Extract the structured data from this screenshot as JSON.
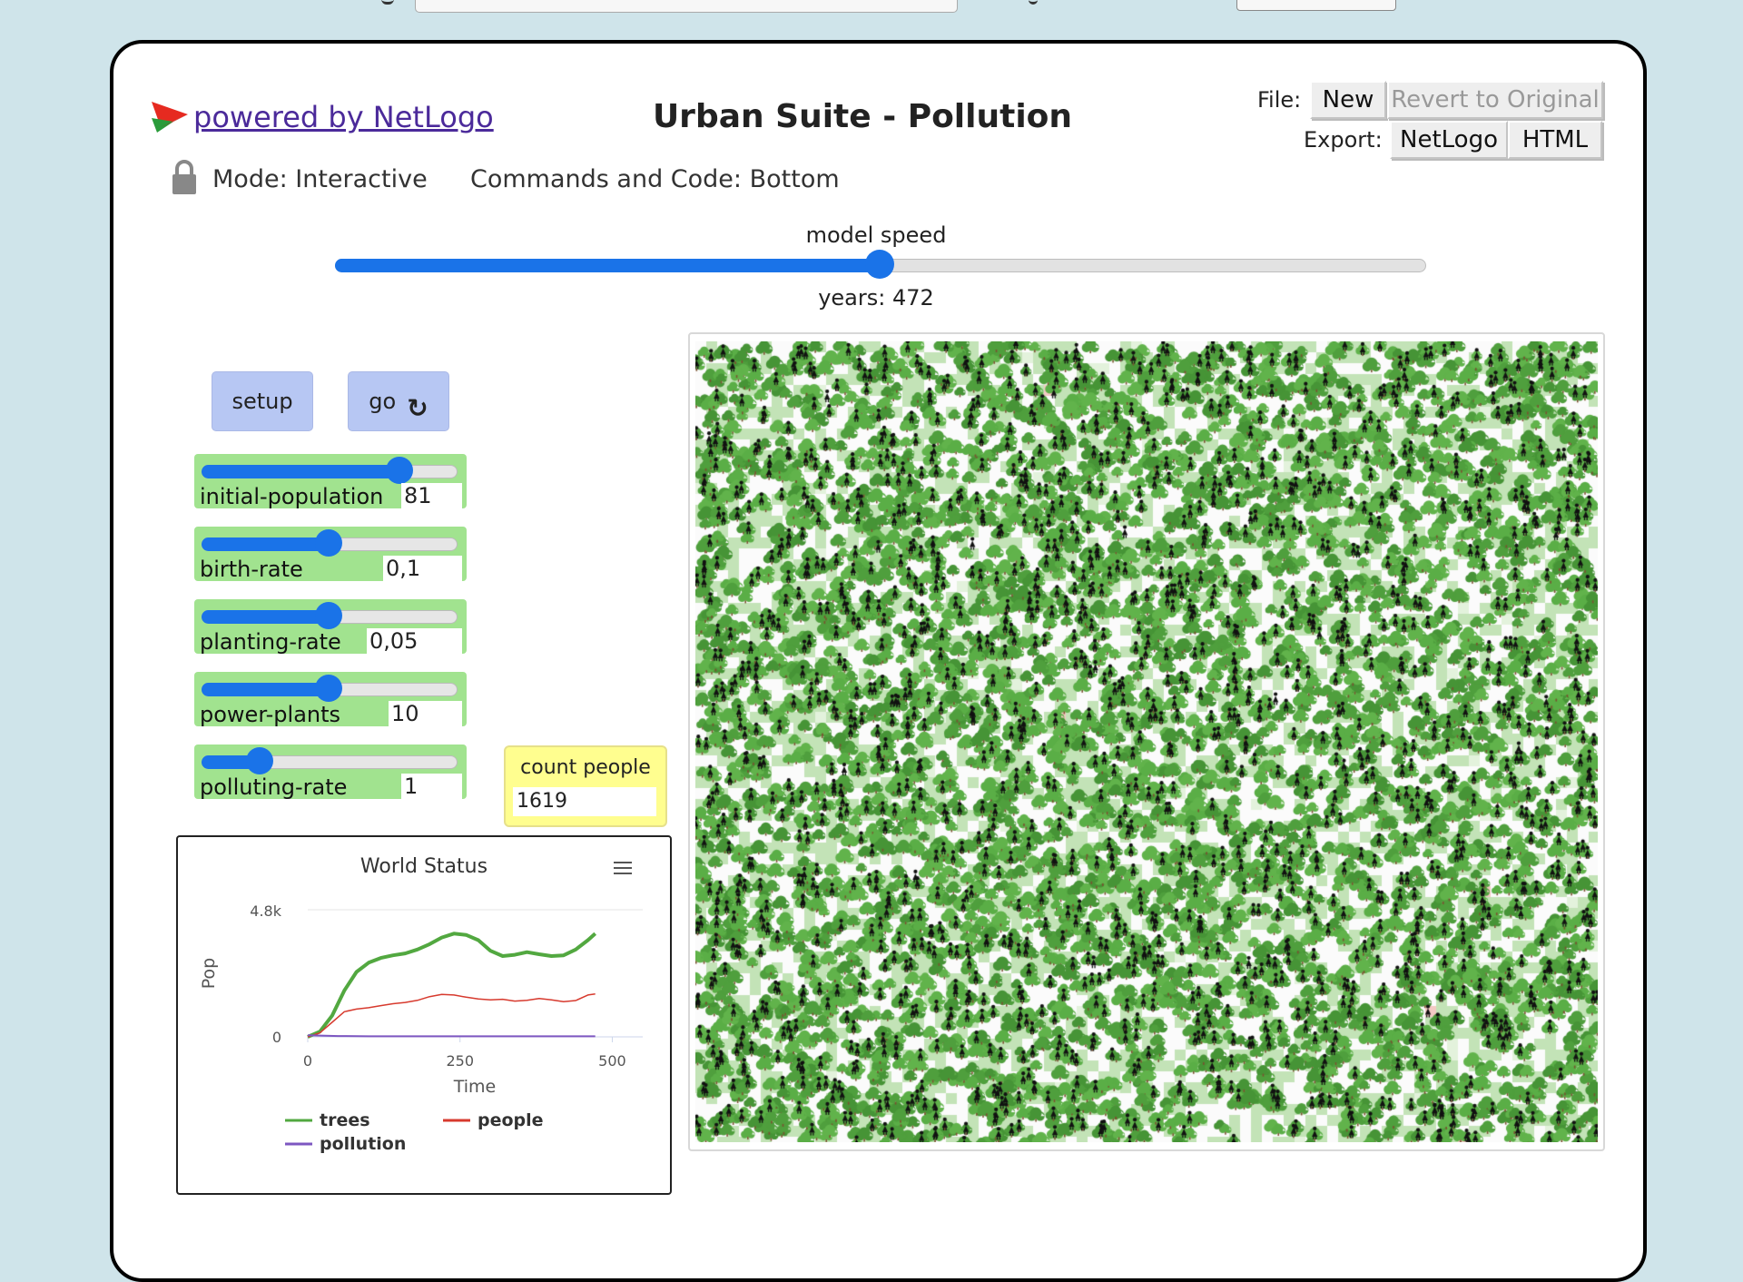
{
  "header": {
    "powered_by": "powered by NetLogo",
    "title": "Urban Suite - Pollution",
    "file_label": "File:",
    "export_label": "Export:",
    "new_label": "New",
    "revert_label": "Revert to Original",
    "netlogo_label": "NetLogo",
    "html_label": "HTML",
    "mode": "Mode: Interactive",
    "commands": "Commands and Code: Bottom"
  },
  "speed": {
    "label": "model speed",
    "value": 0.5,
    "ticks_label": "years: 472"
  },
  "buttons": {
    "setup": "setup",
    "go": "go",
    "go_forever_icon": "refresh-icon"
  },
  "sliders": [
    {
      "label": "initial-population",
      "value": "81",
      "position": 0.78
    },
    {
      "label": "birth-rate",
      "value": "0,1",
      "position": 0.5
    },
    {
      "label": "planting-rate",
      "value": "0,05",
      "position": 0.5
    },
    {
      "label": "power-plants",
      "value": "10",
      "position": 0.5
    },
    {
      "label": "polluting-rate",
      "value": "1",
      "position": 0.23
    }
  ],
  "monitor": {
    "label": "count people",
    "value": "1619"
  },
  "colors": {
    "trees": "#52a840",
    "people": "#d73a2e",
    "pollution": "#7d57c1",
    "slider_bg": "#a1e38f",
    "button_bg": "#b7c7f3",
    "monitor_bg": "#fffe8f",
    "patch_light_green": "#c3e3b7",
    "accent": "#1a73e8"
  },
  "chart_data": {
    "type": "line",
    "title": "World Status",
    "xlabel": "Time",
    "ylabel": "Pop",
    "xlim": [
      0,
      550
    ],
    "ylim": [
      0,
      4800
    ],
    "x_ticks": [
      "0",
      "250",
      "500"
    ],
    "y_ticks": [
      "0",
      "4.8k"
    ],
    "legend_position": "bottom",
    "menu_icon": "hamburger-menu-icon",
    "series": [
      {
        "name": "trees",
        "color": "#52a840",
        "x": [
          0,
          20,
          40,
          60,
          80,
          100,
          120,
          140,
          160,
          180,
          200,
          220,
          240,
          260,
          280,
          300,
          320,
          340,
          360,
          380,
          400,
          420,
          440,
          460,
          472
        ],
        "y": [
          0,
          200,
          800,
          1750,
          2450,
          2800,
          2980,
          3080,
          3150,
          3300,
          3500,
          3750,
          3900,
          3850,
          3650,
          3250,
          3050,
          3100,
          3200,
          3120,
          3050,
          3080,
          3300,
          3650,
          3900
        ]
      },
      {
        "name": "people",
        "color": "#d73a2e",
        "x": [
          0,
          20,
          40,
          60,
          80,
          100,
          120,
          140,
          160,
          180,
          200,
          220,
          240,
          260,
          280,
          300,
          320,
          340,
          360,
          380,
          400,
          420,
          440,
          460,
          472
        ],
        "y": [
          0,
          150,
          550,
          950,
          1050,
          1100,
          1180,
          1250,
          1300,
          1380,
          1520,
          1600,
          1580,
          1500,
          1430,
          1400,
          1420,
          1350,
          1380,
          1450,
          1400,
          1330,
          1370,
          1580,
          1620
        ]
      },
      {
        "name": "pollution",
        "color": "#7d57c1",
        "x": [
          0,
          50,
          100,
          200,
          300,
          400,
          472
        ],
        "y": [
          60,
          30,
          20,
          20,
          20,
          20,
          20
        ]
      }
    ]
  }
}
